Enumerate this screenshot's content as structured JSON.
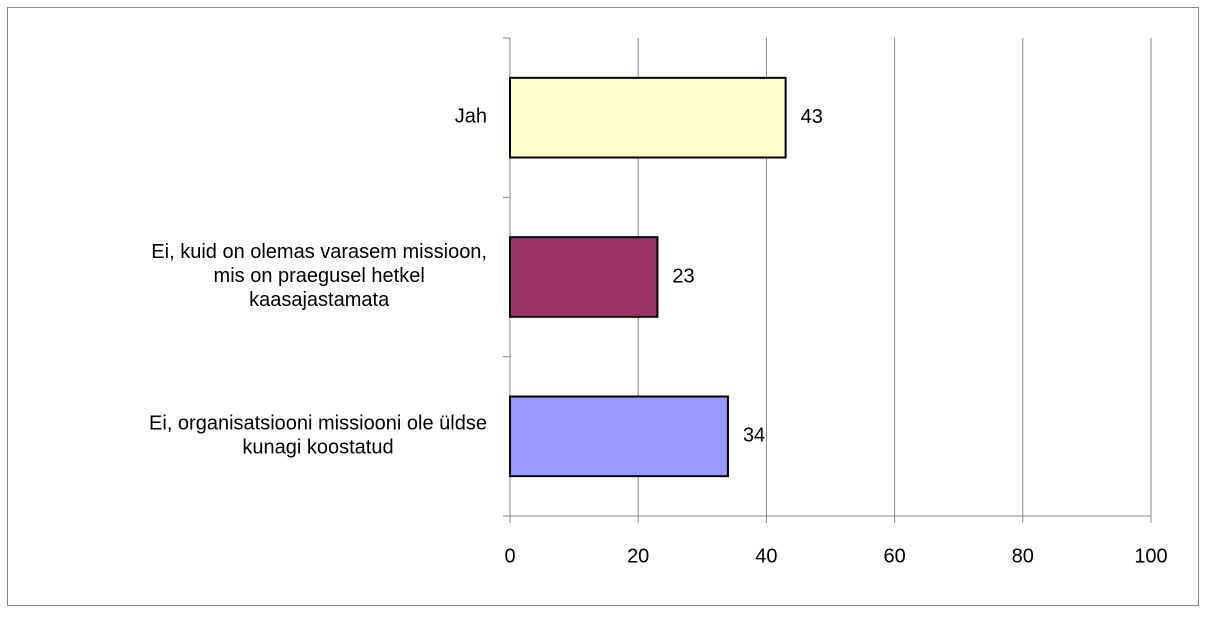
{
  "chart_data": {
    "type": "bar",
    "orientation": "horizontal",
    "categories": [
      [
        "Jah"
      ],
      [
        "Ei, kuid on olemas varasem missioon,",
        "mis on praegusel hetkel",
        "kaasajastamata"
      ],
      [
        "Ei, organisatsiooni missiooni ole üldse",
        "kunagi koostatud"
      ]
    ],
    "values": [
      43,
      23,
      34
    ],
    "colors": [
      "#FFFFCC",
      "#993366",
      "#9999FF"
    ],
    "xlim": [
      0,
      100
    ],
    "xticks": [
      0,
      20,
      40,
      60,
      80,
      100
    ],
    "grid": true
  }
}
